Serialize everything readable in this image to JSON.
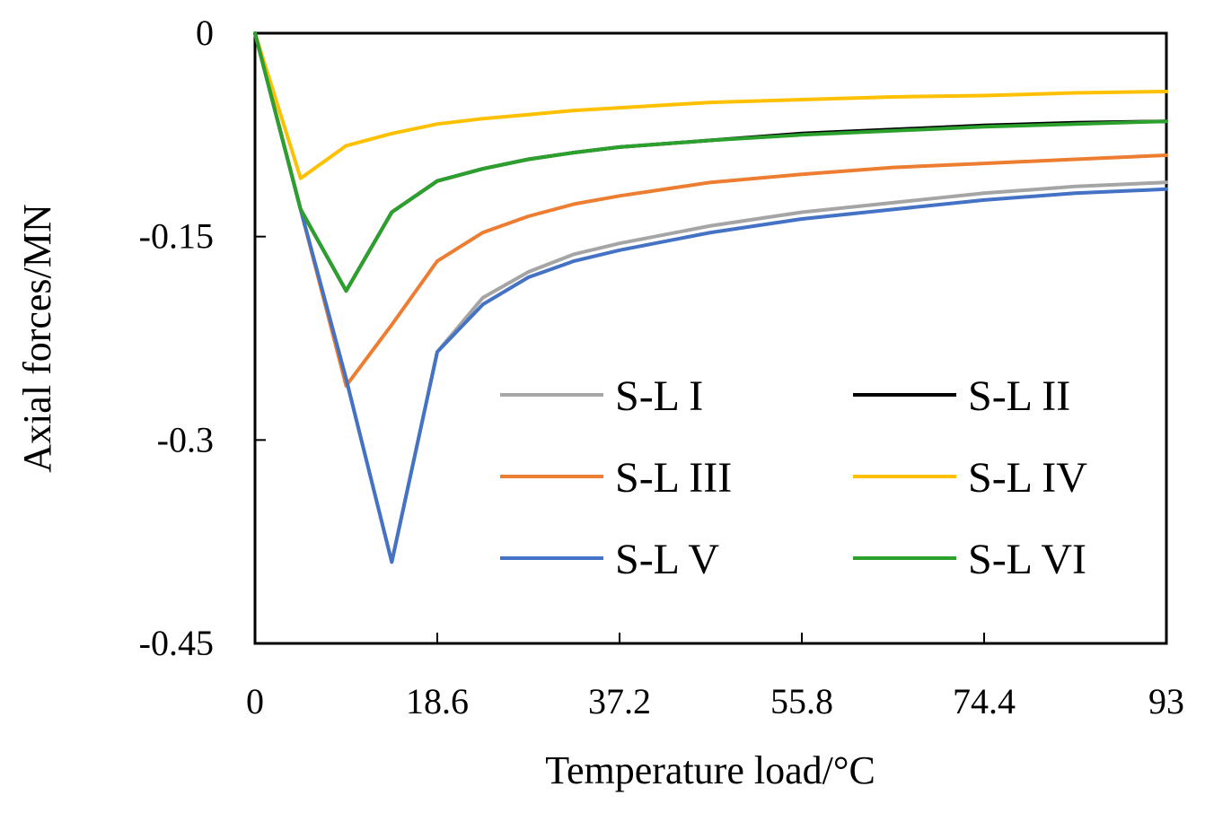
{
  "chart_data": {
    "type": "line",
    "xlabel": "Temperature load/°C",
    "ylabel": "Axial forces/MN",
    "xlim": [
      0,
      93
    ],
    "ylim": [
      -0.45,
      0
    ],
    "x_ticks": [
      0,
      18.6,
      37.2,
      55.8,
      74.4,
      93
    ],
    "x_tick_labels": [
      "0",
      "18.6",
      "37.2",
      "55.8",
      "74.4",
      "93"
    ],
    "y_ticks": [
      0,
      -0.15,
      -0.3,
      -0.45
    ],
    "y_tick_labels": [
      "0",
      "-0.15",
      "-0.3",
      "-0.45"
    ],
    "grid": false,
    "legend_position": "bottom-right",
    "series": [
      {
        "name": "S-L I",
        "color": "#a5a5a5",
        "x": [
          0,
          4.65,
          9.3,
          13.95,
          18.6,
          23.25,
          27.9,
          32.55,
          37.2,
          46.5,
          55.8,
          65.1,
          74.4,
          83.7,
          93
        ],
        "y": [
          0,
          -0.13,
          -0.255,
          -0.39,
          -0.235,
          -0.195,
          -0.176,
          -0.163,
          -0.155,
          -0.142,
          -0.132,
          -0.125,
          -0.118,
          -0.113,
          -0.11
        ]
      },
      {
        "name": "S-L II",
        "color": "#000000",
        "x": [
          0,
          4.65,
          9.3,
          13.95,
          18.6,
          23.25,
          27.9,
          32.55,
          37.2,
          46.5,
          55.8,
          65.1,
          74.4,
          83.7,
          93
        ],
        "y": [
          0,
          -0.13,
          -0.19,
          -0.132,
          -0.109,
          -0.1,
          -0.093,
          -0.088,
          -0.084,
          -0.079,
          -0.074,
          -0.071,
          -0.068,
          -0.066,
          -0.065
        ]
      },
      {
        "name": "S-L III",
        "color": "#ed7d31",
        "x": [
          0,
          4.65,
          9.3,
          13.95,
          18.6,
          23.25,
          27.9,
          32.55,
          37.2,
          46.5,
          55.8,
          65.1,
          74.4,
          83.7,
          93
        ],
        "y": [
          0,
          -0.13,
          -0.26,
          -0.215,
          -0.168,
          -0.147,
          -0.135,
          -0.126,
          -0.12,
          -0.11,
          -0.104,
          -0.099,
          -0.096,
          -0.093,
          -0.09
        ]
      },
      {
        "name": "S-L IV",
        "color": "#ffc000",
        "x": [
          0,
          4.65,
          9.3,
          13.95,
          18.6,
          23.25,
          27.9,
          32.55,
          37.2,
          46.5,
          55.8,
          65.1,
          74.4,
          83.7,
          93
        ],
        "y": [
          0,
          -0.107,
          -0.083,
          -0.074,
          -0.067,
          -0.063,
          -0.06,
          -0.057,
          -0.055,
          -0.051,
          -0.049,
          -0.047,
          -0.046,
          -0.044,
          -0.043
        ]
      },
      {
        "name": "S-L V",
        "color": "#4472c4",
        "x": [
          0,
          4.65,
          9.3,
          13.95,
          18.6,
          23.25,
          27.9,
          32.55,
          37.2,
          46.5,
          55.8,
          65.1,
          74.4,
          83.7,
          93
        ],
        "y": [
          0,
          -0.13,
          -0.255,
          -0.39,
          -0.235,
          -0.2,
          -0.18,
          -0.168,
          -0.16,
          -0.147,
          -0.137,
          -0.13,
          -0.123,
          -0.118,
          -0.115
        ]
      },
      {
        "name": "S-L VI",
        "color": "#2ca02c",
        "x": [
          0,
          4.65,
          9.3,
          13.95,
          18.6,
          23.25,
          27.9,
          32.55,
          37.2,
          46.5,
          55.8,
          65.1,
          74.4,
          83.7,
          93
        ],
        "y": [
          0,
          -0.13,
          -0.19,
          -0.132,
          -0.109,
          -0.1,
          -0.093,
          -0.088,
          -0.084,
          -0.079,
          -0.075,
          -0.072,
          -0.069,
          -0.067,
          -0.065
        ]
      }
    ]
  }
}
